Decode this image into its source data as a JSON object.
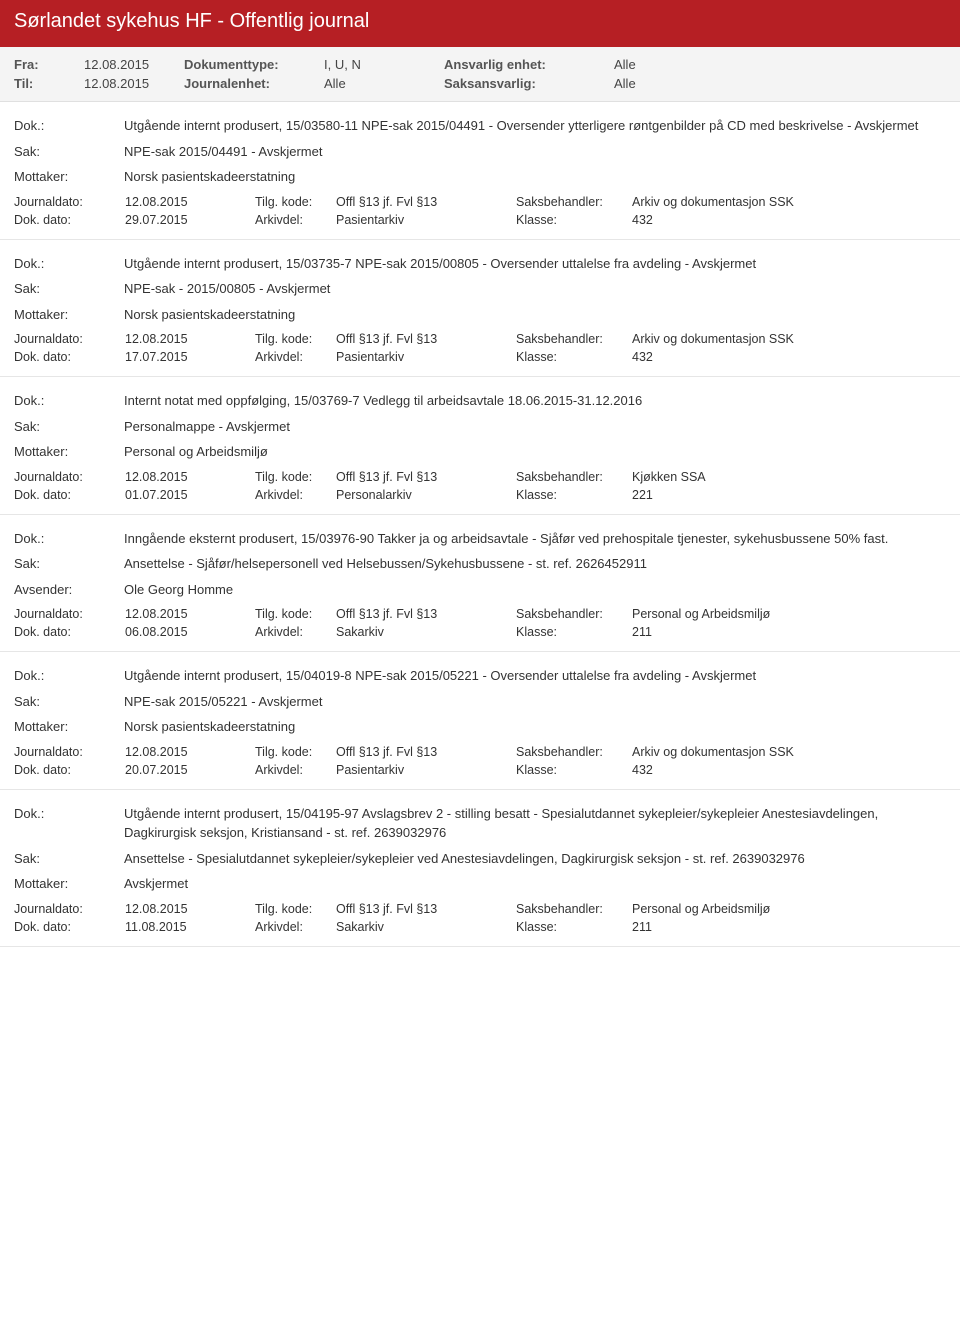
{
  "colors": {
    "header_bg": "#b61f24",
    "header_text": "#ffffff",
    "meta_bg": "#f4f4f4",
    "border": "#e0e0e0",
    "text": "#333333"
  },
  "header": {
    "title": "Sørlandet sykehus HF - Offentlig journal"
  },
  "meta": {
    "fra_label": "Fra:",
    "fra_value": "12.08.2015",
    "til_label": "Til:",
    "til_value": "12.08.2015",
    "doktype_label": "Dokumenttype:",
    "doktype_value": "I, U, N",
    "journalenhet_label": "Journalenhet:",
    "journalenhet_value": "Alle",
    "ansvarlig_label": "Ansvarlig enhet:",
    "ansvarlig_value": "Alle",
    "saksansvarlig_label": "Saksansvarlig:",
    "saksansvarlig_value": "Alle"
  },
  "labels": {
    "dok": "Dok.:",
    "sak": "Sak:",
    "mottaker": "Mottaker:",
    "avsender": "Avsender:",
    "journaldato": "Journaldato:",
    "tilgkode": "Tilg. kode:",
    "saksbehandler": "Saksbehandler:",
    "dokdato": "Dok. dato:",
    "arkivdel": "Arkivdel:",
    "klasse": "Klasse:"
  },
  "entries": [
    {
      "dok": "Utgående internt produsert, 15/03580-11 NPE-sak 2015/04491 - Oversender ytterligere røntgenbilder på CD med beskrivelse - Avskjermet",
      "sak": "NPE-sak 2015/04491 - Avskjermet",
      "party_label": "Mottaker:",
      "party": "Norsk pasientskadeerstatning",
      "journaldato": "12.08.2015",
      "tilgkode": "Offl §13 jf. Fvl §13",
      "saksbehandler": "Arkiv og dokumentasjon SSK",
      "dokdato": "29.07.2015",
      "arkivdel": "Pasientarkiv",
      "klasse": "432"
    },
    {
      "dok": "Utgående internt produsert, 15/03735-7 NPE-sak 2015/00805 - Oversender uttalelse fra avdeling - Avskjermet",
      "sak": "NPE-sak - 2015/00805 - Avskjermet",
      "party_label": "Mottaker:",
      "party": "Norsk pasientskadeerstatning",
      "journaldato": "12.08.2015",
      "tilgkode": "Offl §13 jf. Fvl §13",
      "saksbehandler": "Arkiv og dokumentasjon SSK",
      "dokdato": "17.07.2015",
      "arkivdel": "Pasientarkiv",
      "klasse": "432"
    },
    {
      "dok": "Internt notat med oppfølging, 15/03769-7 Vedlegg til arbeidsavtale 18.06.2015-31.12.2016",
      "sak": "Personalmappe - Avskjermet",
      "party_label": "Mottaker:",
      "party": "Personal og Arbeidsmiljø",
      "journaldato": "12.08.2015",
      "tilgkode": "Offl §13 jf. Fvl §13",
      "saksbehandler": "Kjøkken SSA",
      "dokdato": "01.07.2015",
      "arkivdel": "Personalarkiv",
      "klasse": "221"
    },
    {
      "dok": "Inngående eksternt produsert, 15/03976-90 Takker ja og arbeidsavtale - Sjåfør ved prehospitale tjenester, sykehusbussene 50% fast.",
      "sak": "Ansettelse - Sjåfør/helsepersonell ved Helsebussen/Sykehusbussene - st. ref. 2626452911",
      "party_label": "Avsender:",
      "party": "Ole Georg Homme",
      "journaldato": "12.08.2015",
      "tilgkode": "Offl §13 jf. Fvl §13",
      "saksbehandler": "Personal og Arbeidsmiljø",
      "dokdato": "06.08.2015",
      "arkivdel": "Sakarkiv",
      "klasse": "211"
    },
    {
      "dok": "Utgående internt produsert, 15/04019-8 NPE-sak 2015/05221 - Oversender uttalelse fra avdeling - Avskjermet",
      "sak": "NPE-sak 2015/05221 - Avskjermet",
      "party_label": "Mottaker:",
      "party": "Norsk pasientskadeerstatning",
      "journaldato": "12.08.2015",
      "tilgkode": "Offl §13 jf. Fvl §13",
      "saksbehandler": "Arkiv og dokumentasjon SSK",
      "dokdato": "20.07.2015",
      "arkivdel": "Pasientarkiv",
      "klasse": "432"
    },
    {
      "dok": "Utgående internt produsert, 15/04195-97 Avslagsbrev 2 - stilling besatt - Spesialutdannet sykepleier/sykepleier Anestesiavdelingen, Dagkirurgisk seksjon, Kristiansand - st. ref. 2639032976",
      "sak": "Ansettelse - Spesialutdannet sykepleier/sykepleier ved Anestesiavdelingen, Dagkirurgisk seksjon - st. ref. 2639032976",
      "party_label": "Mottaker:",
      "party": "Avskjermet",
      "journaldato": "12.08.2015",
      "tilgkode": "Offl §13 jf. Fvl §13",
      "saksbehandler": "Personal og Arbeidsmiljø",
      "dokdato": "11.08.2015",
      "arkivdel": "Sakarkiv",
      "klasse": "211"
    }
  ]
}
